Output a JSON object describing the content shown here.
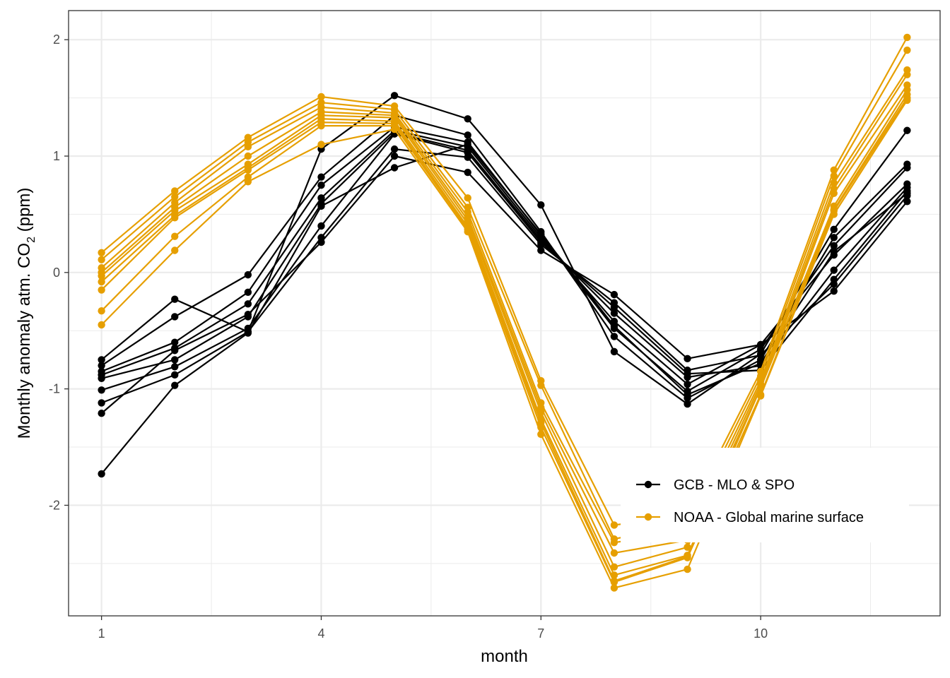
{
  "chart_data": {
    "type": "line",
    "xlabel": "month",
    "ylabel": {
      "before": "Monthly anomaly atm. CO",
      "subscript": "2",
      "after": " (ppm)"
    },
    "xlim": [
      0.55,
      12.45
    ],
    "ylim": [
      -2.95,
      2.25
    ],
    "x_ticks": [
      1,
      4,
      7,
      10
    ],
    "y_ticks": [
      -2,
      -1,
      0,
      1,
      2
    ],
    "x_tick_labels": [
      "1",
      "4",
      "7",
      "10"
    ],
    "y_tick_labels": [
      "-2",
      "-1",
      "0",
      "1",
      "2"
    ],
    "grid": true,
    "legend_position": "bottom-right inside",
    "x": [
      1,
      2,
      3,
      4,
      5,
      6,
      7,
      8,
      9,
      10,
      11,
      12
    ],
    "groups": [
      {
        "name": "GCB - MLO & SPO",
        "color": "#000000",
        "series": [
          [
            -0.75,
            -0.23,
            -0.51,
            1.06,
            1.52,
            1.32,
            0.58,
            -0.68,
            -1.13,
            -0.7,
            0.37,
            1.22
          ],
          [
            -0.8,
            -0.38,
            -0.02,
            0.82,
            1.35,
            1.18,
            0.35,
            -0.55,
            -1.08,
            -0.75,
            0.3,
            0.93
          ],
          [
            -0.85,
            -0.6,
            -0.17,
            0.75,
            1.25,
            1.12,
            0.32,
            -0.48,
            -1.02,
            -0.66,
            0.23,
            0.9
          ],
          [
            -0.88,
            -0.65,
            -0.27,
            0.64,
            1.22,
            1.08,
            0.3,
            -0.42,
            -0.96,
            -0.62,
            0.15,
            0.76
          ],
          [
            -0.91,
            -0.75,
            -0.38,
            0.59,
            1.2,
            1.05,
            0.28,
            -0.35,
            -0.9,
            -0.8,
            0.02,
            0.73
          ],
          [
            -1.01,
            -0.81,
            -0.48,
            0.4,
            1.19,
            1.03,
            0.26,
            -0.3,
            -0.87,
            -0.84,
            -0.06,
            0.7
          ],
          [
            -1.12,
            -0.88,
            -0.51,
            0.3,
            1.06,
            0.99,
            0.24,
            -0.26,
            -0.84,
            -0.71,
            -0.1,
            0.66
          ],
          [
            -1.21,
            -0.67,
            -0.36,
            0.26,
            1.0,
            0.86,
            0.19,
            -0.19,
            -0.74,
            -0.62,
            -0.16,
            0.61
          ],
          [
            -1.73,
            -0.97,
            -0.52,
            0.57,
            0.9,
            1.1,
            0.33,
            -0.46,
            -1.05,
            -0.78,
            0.18,
            0.68
          ]
        ]
      },
      {
        "name": "NOAA - Global marine surface",
        "color": "#E69F00",
        "series": [
          [
            0.17,
            0.7,
            1.16,
            1.51,
            1.43,
            0.64,
            -0.93,
            -2.17,
            -2.09,
            -0.85,
            0.88,
            2.02
          ],
          [
            0.11,
            0.65,
            1.12,
            1.46,
            1.4,
            0.56,
            -0.97,
            -2.29,
            -2.16,
            -0.89,
            0.83,
            1.91
          ],
          [
            0.04,
            0.6,
            1.08,
            1.42,
            1.37,
            0.52,
            -1.12,
            -2.32,
            -2.23,
            -0.93,
            0.77,
            1.74
          ],
          [
            0.0,
            0.56,
            1.0,
            1.38,
            1.35,
            0.48,
            -1.16,
            -2.41,
            -2.3,
            -0.96,
            0.72,
            1.7
          ],
          [
            -0.03,
            0.53,
            0.93,
            1.35,
            1.33,
            0.45,
            -1.2,
            -2.53,
            -2.36,
            -0.99,
            0.68,
            1.61
          ],
          [
            -0.08,
            0.49,
            0.9,
            1.32,
            1.3,
            0.42,
            -1.26,
            -2.6,
            -2.43,
            -0.99,
            0.57,
            1.57
          ],
          [
            -0.15,
            0.47,
            0.88,
            1.29,
            1.28,
            0.39,
            -1.29,
            -2.65,
            -2.44,
            -0.99,
            0.54,
            1.53
          ],
          [
            -0.33,
            0.31,
            0.82,
            1.26,
            1.26,
            0.37,
            -1.33,
            -2.66,
            -2.45,
            -1.05,
            0.53,
            1.5
          ],
          [
            -0.45,
            0.19,
            0.78,
            1.1,
            1.23,
            0.35,
            -1.39,
            -2.71,
            -2.55,
            -1.06,
            0.5,
            1.48
          ]
        ]
      }
    ]
  }
}
